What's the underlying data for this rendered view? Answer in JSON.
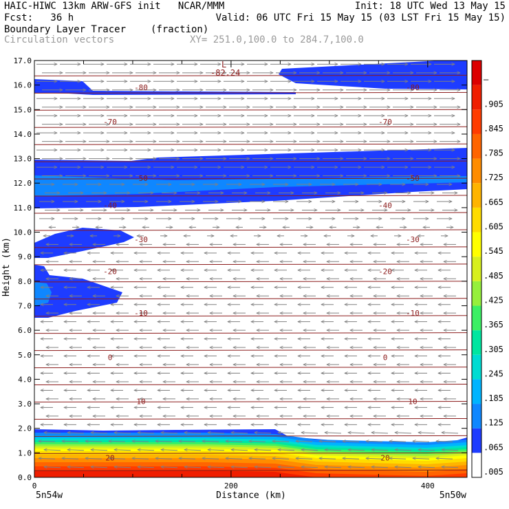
{
  "header": {
    "left1": "HAIC-HIWC 13km ARW-GFS init   NCAR/MMM",
    "left2": "Fcst:   36 h",
    "right1": "Init: 18 UTC Wed 13 May 15",
    "right2": "Valid: 06 UTC Fri 15 May 15 (03 LST Fri 15 May 15)",
    "field": "Boundary Layer Tracer",
    "field_units": "(fraction)",
    "vectors": "Circulation vectors",
    "xy": "XY= 251.0,100.0 to 284.7,100.0"
  },
  "chart_data": {
    "type": "heatmap",
    "xlabel": "Distance (km)",
    "ylabel": "Height (km)",
    "xlim": [
      0,
      440
    ],
    "ylim": [
      0,
      17
    ],
    "x_ticks": [
      "0",
      "200",
      "400"
    ],
    "x_end_labels": [
      "5n54w",
      "5n50w"
    ],
    "y_ticks": [
      "0.0",
      "1.0",
      "2.0",
      "3.0",
      "4.0",
      "5.0",
      "6.0",
      "7.0",
      "8.0",
      "9.0",
      "10.0",
      "11.0",
      "12.0",
      "13.0",
      "14.0",
      "15.0",
      "16.0",
      "17.0"
    ],
    "colorbar_labels": [
      ".005",
      ".065",
      ".125",
      ".185",
      ".245",
      ".305",
      ".365",
      ".425",
      ".485",
      ".545",
      ".605",
      ".665",
      ".725",
      ".785",
      ".845",
      ".905",
      "–"
    ],
    "colorbar_colors": [
      "#ffffff",
      "#1e3cff",
      "#0f87ff",
      "#00b4ff",
      "#00dcd2",
      "#00e6a0",
      "#3cf064",
      "#96f03c",
      "#d7f01e",
      "#ffff00",
      "#ffdc00",
      "#ffb400",
      "#ff8c00",
      "#ff6400",
      "#ff3c00",
      "#f01e00",
      "#dc0000"
    ],
    "temperature_contours": [
      {
        "label": "20",
        "height": 0.8
      },
      {
        "label": "10",
        "height": 3.1
      },
      {
        "label": "0",
        "height": 4.9
      },
      {
        "label": "-10",
        "height": 6.7
      },
      {
        "label": "-20",
        "height": 8.4
      },
      {
        "label": "-30",
        "height": 9.7
      },
      {
        "label": "-40",
        "height": 11.1
      },
      {
        "label": "-50",
        "height": 12.2
      },
      {
        "label": "-70",
        "height": 14.5
      },
      {
        "label": "-80",
        "height": 15.9
      }
    ],
    "min_label": "-82.24",
    "low_marker": "L"
  }
}
